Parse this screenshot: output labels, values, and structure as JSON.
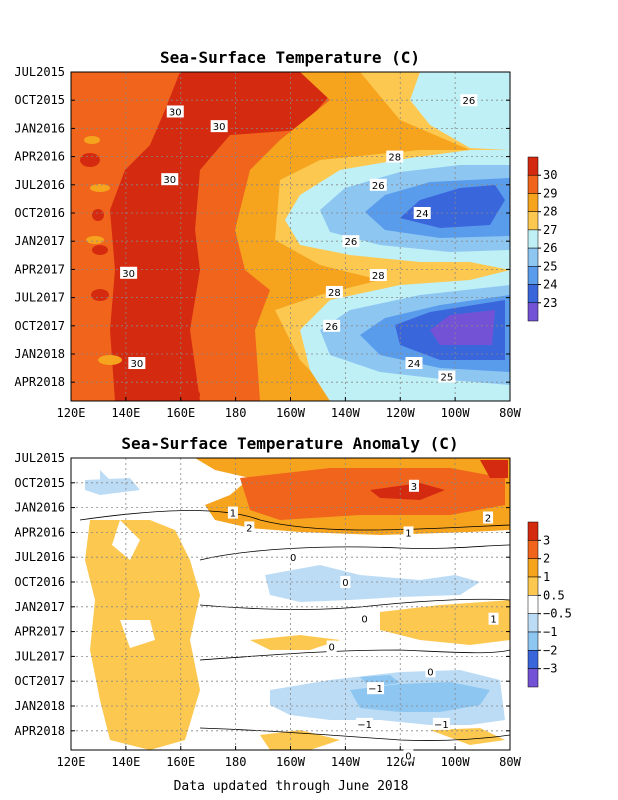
{
  "footer": "Data updated through June 2018",
  "chart_data": [
    {
      "type": "heatmap",
      "title": "Sea-Surface Temperature (C)",
      "y_tick_labels": [
        "JUL2015",
        "OCT2015",
        "JAN2016",
        "APR2016",
        "JUL2016",
        "OCT2016",
        "JAN2017",
        "APR2017",
        "JUL2017",
        "OCT2017",
        "JAN2018",
        "APR2018"
      ],
      "x_tick_labels": [
        "120E",
        "140E",
        "160E",
        "180",
        "160W",
        "140W",
        "120W",
        "100W",
        "80W"
      ],
      "colorbar": {
        "labels": [
          "30",
          "29",
          "28",
          "27",
          "26",
          "25",
          "24",
          "23"
        ],
        "colors": [
          "#d42a10",
          "#f0641c",
          "#f6a41e",
          "#fdc850",
          "#bff0f6",
          "#8ec6f2",
          "#5a9cec",
          "#3a66dc",
          "#7452d6"
        ]
      },
      "contour_labels": [
        {
          "text": "30",
          "x": 158,
          "y": 2015.85
        },
        {
          "text": "30",
          "x": 174,
          "y": 2015.98
        },
        {
          "text": "26",
          "x": -95,
          "y": 2015.75
        },
        {
          "text": "30",
          "x": 156,
          "y": 2016.45
        },
        {
          "text": "28",
          "x": -122,
          "y": 2016.25
        },
        {
          "text": "26",
          "x": -128,
          "y": 2016.5
        },
        {
          "text": "24",
          "x": -112,
          "y": 2016.75
        },
        {
          "text": "30",
          "x": 141,
          "y": 2017.28
        },
        {
          "text": "26",
          "x": -138,
          "y": 2017.0
        },
        {
          "text": "28",
          "x": -128,
          "y": 2017.3
        },
        {
          "text": "28",
          "x": -144,
          "y": 2017.45
        },
        {
          "text": "26",
          "x": -145,
          "y": 2017.75
        },
        {
          "text": "30",
          "x": 144,
          "y": 2018.08
        },
        {
          "text": "24",
          "x": -115,
          "y": 2018.08
        },
        {
          "text": "25",
          "x": -103,
          "y": 2018.2
        }
      ]
    },
    {
      "type": "heatmap",
      "title": "Sea-Surface Temperature Anomaly (C)",
      "y_tick_labels": [
        "JUL2015",
        "OCT2015",
        "JAN2016",
        "APR2016",
        "JUL2016",
        "OCT2016",
        "JAN2017",
        "APR2017",
        "JUL2017",
        "OCT2017",
        "JAN2018",
        "APR2018"
      ],
      "x_tick_labels": [
        "120E",
        "140E",
        "160E",
        "180",
        "160W",
        "140W",
        "120W",
        "100W",
        "80W"
      ],
      "colorbar": {
        "labels": [
          "3",
          "2",
          "1",
          "0.5",
          "−0.5",
          "−1",
          "−2",
          "−3"
        ],
        "colors": [
          "#d42a10",
          "#f0641c",
          "#f6a41e",
          "#fdc850",
          "#ffffff",
          "#bcdcf6",
          "#8ec6f2",
          "#3a66dc",
          "#7452d6"
        ]
      },
      "contour_labels": [
        {
          "text": "3",
          "x": -115,
          "y": 2015.78
        },
        {
          "text": "1",
          "x": 179,
          "y": 2016.05
        },
        {
          "text": "2",
          "x": -88,
          "y": 2016.1
        },
        {
          "text": "2",
          "x": -175,
          "y": 2016.2
        },
        {
          "text": "1",
          "x": -117,
          "y": 2016.25
        },
        {
          "text": "0",
          "x": -159,
          "y": 2016.5
        },
        {
          "text": "0",
          "x": -140,
          "y": 2016.75
        },
        {
          "text": "1",
          "x": -86,
          "y": 2017.12
        },
        {
          "text": "0",
          "x": -133,
          "y": 2017.12
        },
        {
          "text": "0",
          "x": -145,
          "y": 2017.4
        },
        {
          "text": "0",
          "x": -109,
          "y": 2017.65
        },
        {
          "text": "−1",
          "x": -129,
          "y": 2017.82
        },
        {
          "text": "−1",
          "x": -133,
          "y": 2018.18
        },
        {
          "text": "−1",
          "x": -105,
          "y": 2018.18
        },
        {
          "text": "0",
          "x": -117,
          "y": 2018.5
        }
      ]
    }
  ]
}
